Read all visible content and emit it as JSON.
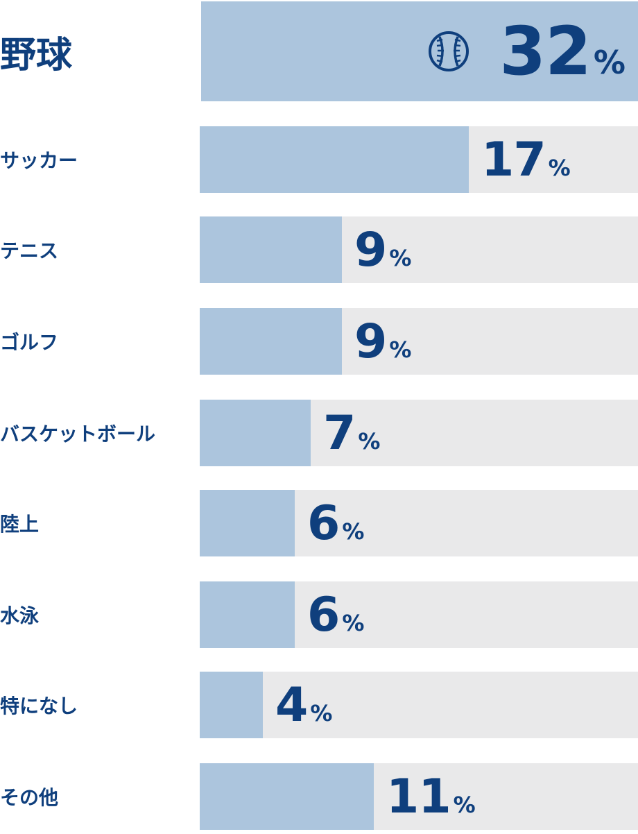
{
  "chart_data": {
    "type": "bar",
    "orientation": "horizontal",
    "categories": [
      "野球",
      "サッカー",
      "テニス",
      "ゴルフ",
      "バスケットボール",
      "陸上",
      "水泳",
      "特になし",
      "その他"
    ],
    "values": [
      32,
      17,
      9,
      9,
      7,
      6,
      6,
      4,
      11
    ],
    "unit": "%",
    "highlight": {
      "category": "野球",
      "icon": "baseball-icon"
    },
    "colors": {
      "bar": "#acc5dd",
      "track": "#e9e9ea",
      "text": "#0f3f7d"
    },
    "grid": false,
    "legend": "none",
    "xlim": [
      0,
      32
    ]
  }
}
